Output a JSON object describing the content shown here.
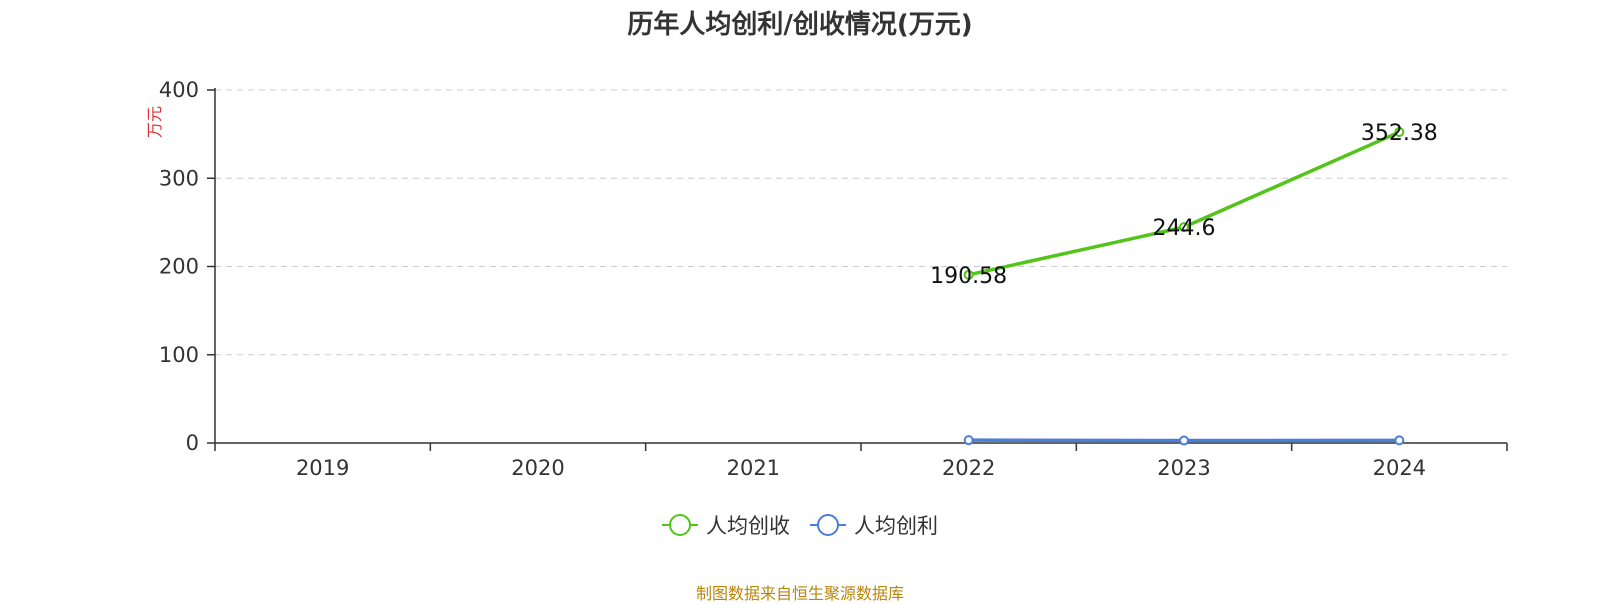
{
  "title": "历年人均创利/创收情况(万元)",
  "source": "制图数据来自恒生聚源数据库",
  "chart_data": {
    "type": "line",
    "categories": [
      "2019",
      "2020",
      "2021",
      "2022",
      "2023",
      "2024"
    ],
    "ylabel": "万元",
    "ylim": [
      0,
      400
    ],
    "yticks": [
      0,
      100,
      200,
      300,
      400
    ],
    "grid": true,
    "legend_position": "bottom",
    "series": [
      {
        "name": "人均创收",
        "color": "#52c41a",
        "values": [
          null,
          null,
          null,
          190.58,
          244.6,
          352.38
        ],
        "labels": [
          null,
          null,
          null,
          "190.58",
          "244.6",
          "352.38"
        ]
      },
      {
        "name": "人均创利",
        "color": "#4a7fd8",
        "values": [
          null,
          null,
          null,
          3.2,
          2.8,
          3.0
        ],
        "labels": [
          null,
          null,
          null,
          null,
          null,
          null
        ]
      }
    ]
  }
}
